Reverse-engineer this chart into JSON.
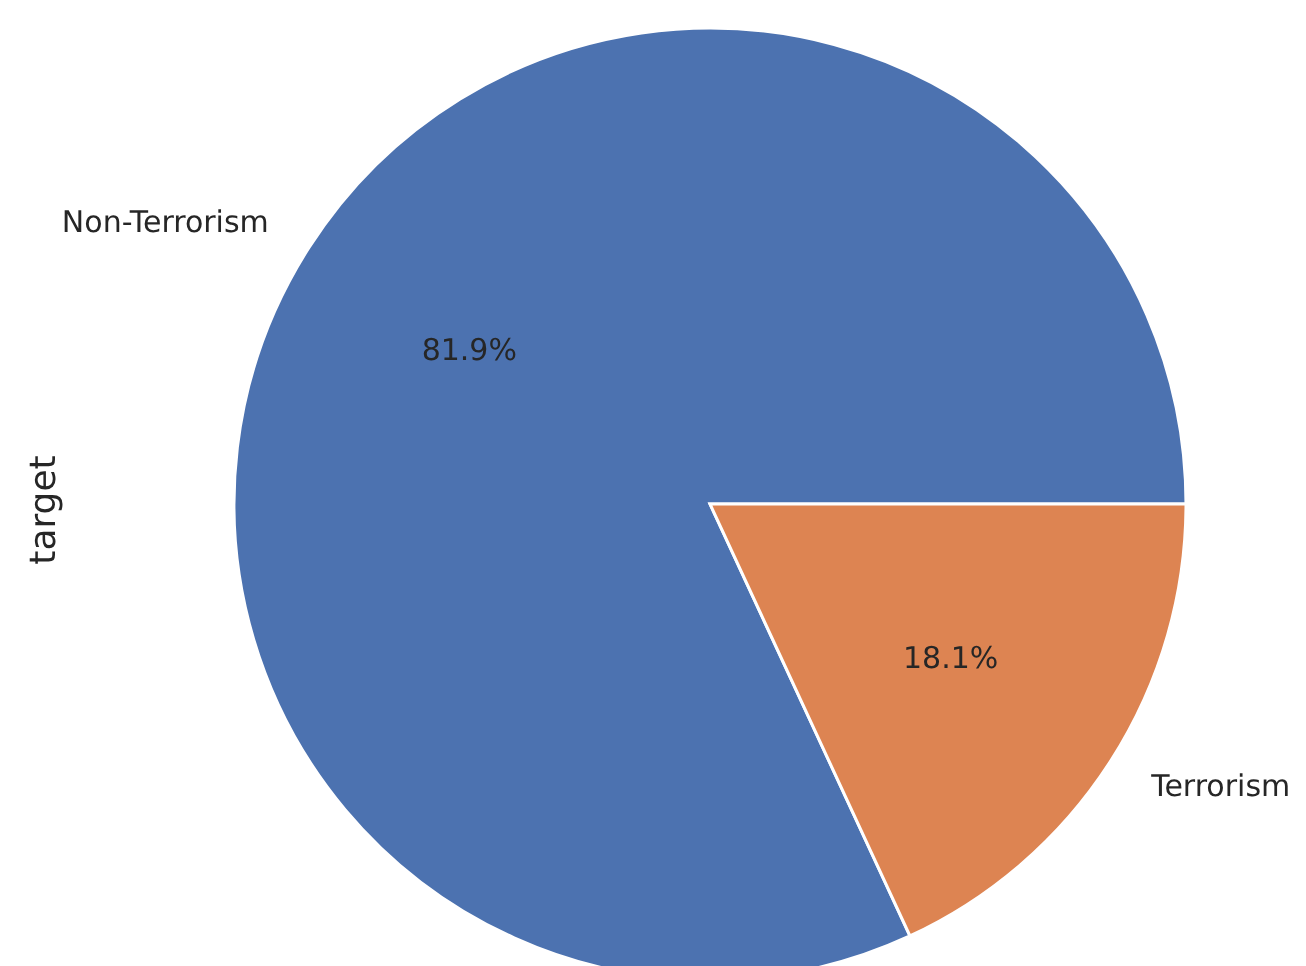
{
  "chart_data": {
    "type": "pie",
    "ylabel": "target",
    "categories": [
      "Non-Terrorism",
      "Terrorism"
    ],
    "values": [
      81.9,
      18.1
    ],
    "colors": [
      "#4c72b0",
      "#dd8452"
    ],
    "value_labels": [
      "81.9%",
      "18.1%"
    ]
  }
}
